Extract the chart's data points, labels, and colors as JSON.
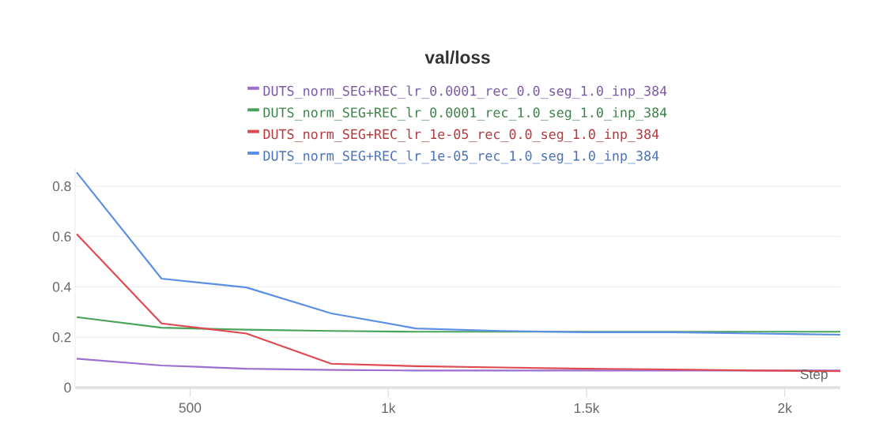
{
  "chart_data": {
    "type": "line",
    "title": "val/loss",
    "xlabel": "Step",
    "x": [
      214,
      428,
      642,
      856,
      1070,
      1284,
      1498,
      1712,
      1926,
      2140
    ],
    "series": [
      {
        "name": "DUTS_norm_SEG+REC_lr_0.0001_rec_0.0_seg_1.0_inp_384",
        "color": "#9b6fd0",
        "values": [
          0.115,
          0.088,
          0.075,
          0.07,
          0.068,
          0.068,
          0.068,
          0.068,
          0.068,
          0.068
        ]
      },
      {
        "name": "DUTS_norm_SEG+REC_lr_0.0001_rec_1.0_seg_1.0_inp_384",
        "color": "#4aa35a",
        "values": [
          0.28,
          0.238,
          0.23,
          0.225,
          0.222,
          0.222,
          0.222,
          0.222,
          0.222,
          0.222
        ]
      },
      {
        "name": "DUTS_norm_SEG+REC_lr_1e-05_rec_0.0_seg_1.0_inp_384",
        "color": "#e0484f",
        "values": [
          0.61,
          0.255,
          0.215,
          0.095,
          0.085,
          0.08,
          0.075,
          0.072,
          0.068,
          0.065
        ]
      },
      {
        "name": "DUTS_norm_SEG+REC_lr_1e-05_rec_1.0_seg_1.0_inp_384",
        "color": "#5b8fe6",
        "values": [
          0.855,
          0.433,
          0.398,
          0.295,
          0.235,
          0.225,
          0.22,
          0.22,
          0.215,
          0.21
        ]
      }
    ],
    "xlim": [
      210,
      2140
    ],
    "ylim": [
      0,
      0.87
    ],
    "xticks": [
      {
        "value": 500,
        "label": "500"
      },
      {
        "value": 1000,
        "label": "1k"
      },
      {
        "value": 1500,
        "label": "1.5k"
      },
      {
        "value": 2000,
        "label": "2k"
      }
    ],
    "yticks": [
      0,
      0.2,
      0.4,
      0.6,
      0.8
    ],
    "grid": "y",
    "legend": "top"
  }
}
